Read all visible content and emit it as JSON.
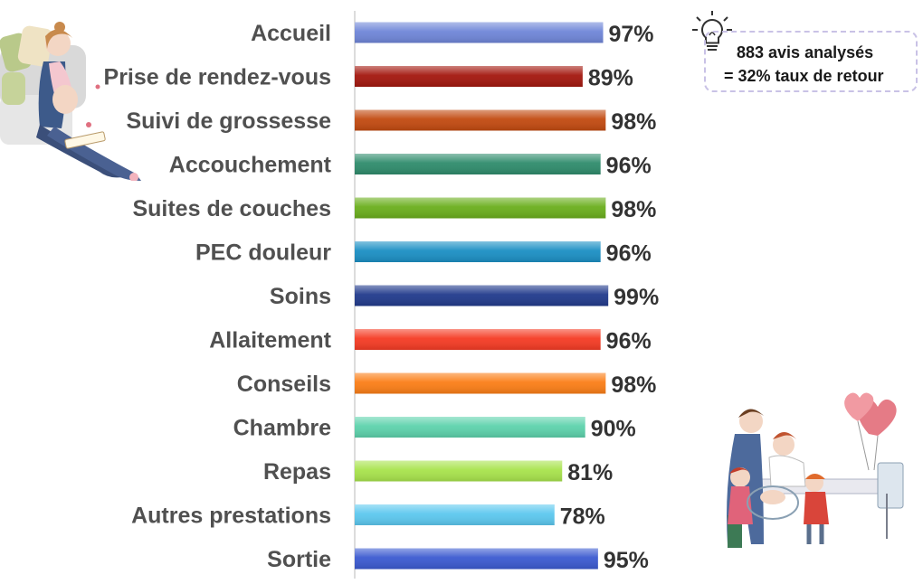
{
  "chart_data": {
    "type": "bar",
    "orientation": "horizontal",
    "categories": [
      "Accueil",
      "Prise de rendez-vous",
      "Suivi de grossesse",
      "Accouchement",
      "Suites de couches",
      "PEC douleur",
      "Soins",
      "Allaitement",
      "Conseils",
      "Chambre",
      "Repas",
      "Autres prestations",
      "Sortie"
    ],
    "values": [
      97,
      89,
      98,
      96,
      98,
      96,
      99,
      96,
      98,
      90,
      81,
      78,
      95
    ],
    "value_labels": [
      "97%",
      "89%",
      "98%",
      "96%",
      "98%",
      "96%",
      "99%",
      "96%",
      "98%",
      "90%",
      "81%",
      "78%",
      "95%"
    ],
    "colors": [
      "#6f86d8",
      "#a3170e",
      "#c24a10",
      "#2f8c6c",
      "#6aae1c",
      "#1b8fc4",
      "#213a8c",
      "#f53b24",
      "#fb7e17",
      "#5dd2ac",
      "#a8e34c",
      "#5cc8ef",
      "#3b5ad0"
    ],
    "xlim": [
      0,
      100
    ],
    "grid": false,
    "legend": "none"
  },
  "note": {
    "line1": "883 avis analysés",
    "line2": "= 32% taux de retour"
  },
  "icons": [
    "lightbulb-icon"
  ],
  "illustrations": [
    "pregnant-woman-illustration",
    "family-maternity-illustration"
  ]
}
